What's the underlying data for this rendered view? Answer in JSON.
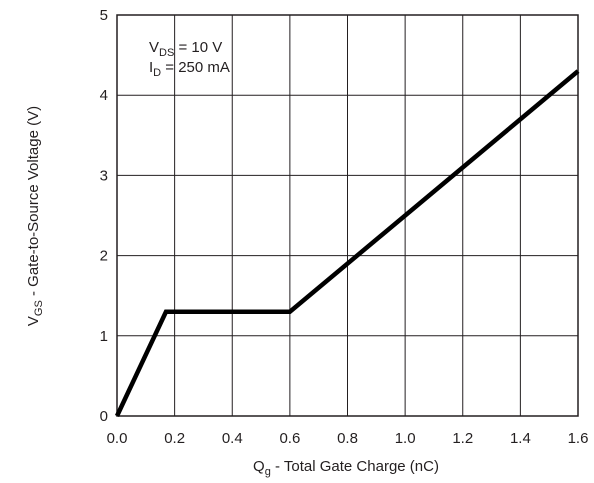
{
  "chart_data": {
    "type": "line",
    "xlabel": {
      "main": "Q",
      "sub": "g",
      "rest": " - Total Gate Charge (nC)"
    },
    "ylabel": {
      "main": "V",
      "sub": "GS",
      "rest": " - Gate-to-Source Voltage (V)"
    },
    "xlim": [
      0,
      1.6
    ],
    "ylim": [
      0,
      5
    ],
    "xticks": [
      0,
      0.2,
      0.4,
      0.6,
      0.8,
      1.0,
      1.2,
      1.4,
      1.6
    ],
    "xtick_labels": [
      "0.0",
      "0.2",
      "0.4",
      "0.6",
      "0.8",
      "1.0",
      "1.2",
      "1.4",
      "1.6"
    ],
    "yticks": [
      0,
      1,
      2,
      3,
      4,
      5
    ],
    "ytick_labels": [
      "0",
      "1",
      "2",
      "3",
      "4",
      "5"
    ],
    "grid": true,
    "annotations": [
      {
        "main": "V",
        "sub": "DS",
        "rest": " = 10 V"
      },
      {
        "main": "I",
        "sub": "D",
        "rest": " = 250 mA"
      }
    ],
    "series": [
      {
        "x": [
          0,
          0.17,
          0.6,
          1.6
        ],
        "y": [
          0,
          1.3,
          1.3,
          4.3
        ]
      }
    ]
  }
}
